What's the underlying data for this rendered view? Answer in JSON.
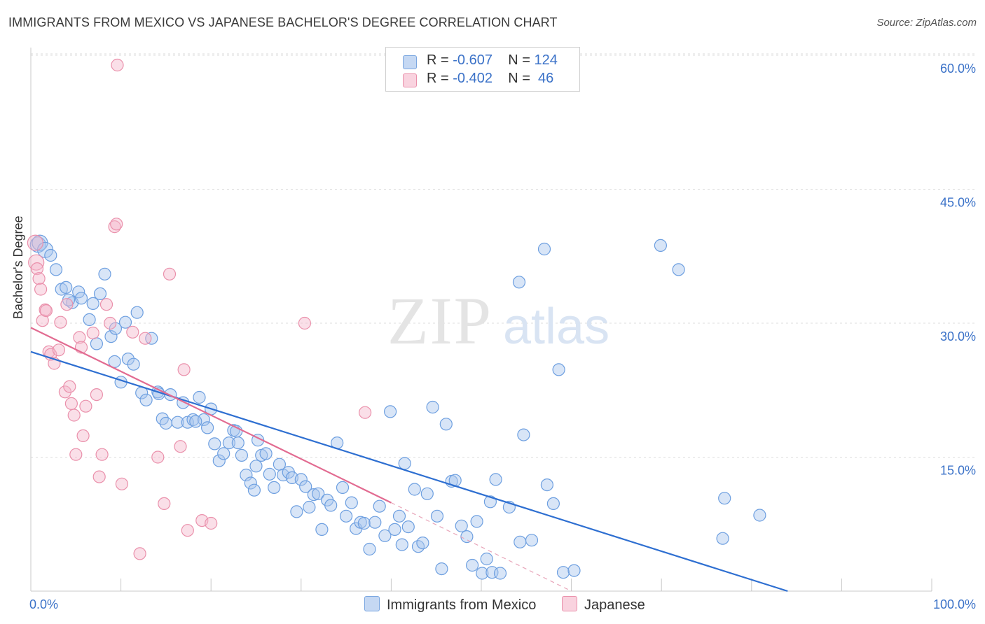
{
  "title": "IMMIGRANTS FROM MEXICO VS JAPANESE BACHELOR'S DEGREE CORRELATION CHART",
  "source": "Source: ZipAtlas.com",
  "watermark": {
    "zip": "ZIP",
    "atlas": "atlas"
  },
  "legend": {
    "rows": [
      {
        "r_label": "R = ",
        "r_value": "-0.607",
        "n_label": "N = ",
        "n_value": "124",
        "color": "#a9c6ee"
      },
      {
        "r_label": "R = ",
        "r_value": "-0.402",
        "n_label": "N = ",
        "n_value": " 46",
        "color": "#f5b8cb"
      }
    ]
  },
  "bottom_legend": [
    {
      "label": "Immigrants from Mexico",
      "color": "#a9c6ee"
    },
    {
      "label": "Japanese",
      "color": "#f5b8cb"
    }
  ],
  "chart_data": {
    "type": "scatter",
    "title": "IMMIGRANTS FROM MEXICO VS JAPANESE BACHELOR'S DEGREE CORRELATION CHART",
    "xlabel": "",
    "ylabel": "Bachelor's Degree",
    "xlim": [
      0,
      100
    ],
    "ylim": [
      0,
      63
    ],
    "x_tick_labels": [
      "0.0%",
      "100.0%"
    ],
    "y_tick_values": [
      15,
      30,
      45,
      60
    ],
    "y_tick_labels": [
      "15.0%",
      "30.0%",
      "45.0%",
      "60.0%"
    ],
    "grid": "horizontal dashed",
    "legend_placement": "top-center",
    "series": [
      {
        "name": "Immigrants from Mexico",
        "color": "#6d9fe0",
        "fill": "#a9c6ee",
        "trendline": {
          "x": [
            0,
            84
          ],
          "y": [
            26.8,
            0
          ],
          "color": "#2e6fd1"
        },
        "points": [
          [
            0.8,
            38.8
          ],
          [
            1.0,
            39.0
          ],
          [
            1.6,
            38.2
          ],
          [
            2.2,
            37.6
          ],
          [
            2.8,
            36.0
          ],
          [
            3.4,
            33.8
          ],
          [
            3.9,
            34.0
          ],
          [
            4.6,
            32.3
          ],
          [
            5.3,
            33.5
          ],
          [
            5.6,
            32.8
          ],
          [
            6.5,
            30.4
          ],
          [
            7.3,
            27.7
          ],
          [
            7.7,
            33.3
          ],
          [
            8.2,
            35.5
          ],
          [
            8.9,
            28.5
          ],
          [
            9.3,
            25.7
          ],
          [
            10.0,
            23.4
          ],
          [
            10.5,
            30.1
          ],
          [
            10.8,
            26.0
          ],
          [
            11.4,
            25.4
          ],
          [
            11.8,
            31.2
          ],
          [
            12.3,
            22.2
          ],
          [
            12.8,
            21.4
          ],
          [
            13.4,
            28.3
          ],
          [
            14.1,
            22.3
          ],
          [
            14.6,
            19.3
          ],
          [
            15.0,
            18.8
          ],
          [
            15.5,
            22.0
          ],
          [
            16.3,
            18.9
          ],
          [
            16.9,
            21.1
          ],
          [
            17.4,
            18.9
          ],
          [
            18.0,
            19.2
          ],
          [
            18.7,
            21.7
          ],
          [
            19.2,
            19.2
          ],
          [
            19.6,
            18.3
          ],
          [
            20.0,
            20.4
          ],
          [
            20.4,
            16.5
          ],
          [
            20.9,
            14.6
          ],
          [
            21.4,
            15.4
          ],
          [
            22.0,
            16.6
          ],
          [
            22.5,
            18.0
          ],
          [
            23.0,
            16.6
          ],
          [
            23.4,
            15.2
          ],
          [
            23.9,
            13.0
          ],
          [
            24.4,
            12.1
          ],
          [
            24.8,
            11.3
          ],
          [
            25.2,
            16.9
          ],
          [
            25.6,
            15.2
          ],
          [
            26.1,
            15.4
          ],
          [
            26.5,
            13.1
          ],
          [
            27.0,
            11.6
          ],
          [
            27.6,
            14.2
          ],
          [
            28.0,
            13.0
          ],
          [
            28.6,
            13.3
          ],
          [
            29.0,
            12.7
          ],
          [
            29.5,
            8.9
          ],
          [
            30.0,
            12.5
          ],
          [
            30.5,
            11.7
          ],
          [
            30.9,
            9.4
          ],
          [
            31.4,
            10.8
          ],
          [
            31.9,
            10.9
          ],
          [
            32.3,
            6.9
          ],
          [
            32.9,
            10.2
          ],
          [
            33.3,
            9.6
          ],
          [
            34.0,
            16.6
          ],
          [
            34.6,
            11.6
          ],
          [
            35.0,
            8.4
          ],
          [
            35.6,
            9.9
          ],
          [
            36.1,
            7.0
          ],
          [
            36.6,
            7.7
          ],
          [
            37.0,
            7.6
          ],
          [
            37.6,
            4.7
          ],
          [
            38.2,
            7.7
          ],
          [
            38.7,
            9.5
          ],
          [
            39.3,
            6.2
          ],
          [
            39.9,
            20.1
          ],
          [
            40.4,
            6.9
          ],
          [
            40.9,
            8.4
          ],
          [
            41.5,
            14.3
          ],
          [
            41.9,
            7.2
          ],
          [
            42.6,
            11.4
          ],
          [
            43.0,
            5.0
          ],
          [
            43.5,
            5.4
          ],
          [
            44.0,
            10.9
          ],
          [
            44.6,
            20.6
          ],
          [
            45.1,
            8.4
          ],
          [
            45.6,
            2.5
          ],
          [
            46.1,
            18.7
          ],
          [
            46.7,
            12.3
          ],
          [
            47.1,
            12.4
          ],
          [
            47.8,
            7.3
          ],
          [
            48.4,
            6.1
          ],
          [
            49.0,
            2.9
          ],
          [
            49.5,
            7.8
          ],
          [
            50.1,
            2.0
          ],
          [
            50.6,
            3.6
          ],
          [
            51.2,
            2.1
          ],
          [
            51.6,
            12.5
          ],
          [
            52.1,
            2.0
          ],
          [
            53.1,
            9.4
          ],
          [
            54.3,
            5.5
          ],
          [
            54.7,
            17.5
          ],
          [
            55.6,
            5.7
          ],
          [
            57.0,
            38.3
          ],
          [
            57.3,
            11.9
          ],
          [
            58.0,
            9.8
          ],
          [
            58.6,
            24.8
          ],
          [
            59.1,
            2.1
          ],
          [
            60.3,
            2.3
          ],
          [
            69.9,
            38.7
          ],
          [
            71.9,
            36.0
          ],
          [
            76.8,
            5.9
          ],
          [
            77.0,
            10.4
          ],
          [
            80.9,
            8.5
          ],
          [
            54.2,
            34.6
          ],
          [
            41.2,
            5.2
          ],
          [
            51.0,
            10.0
          ],
          [
            22.8,
            17.9
          ],
          [
            18.3,
            19.0
          ],
          [
            14.2,
            22.1
          ],
          [
            9.4,
            29.4
          ],
          [
            6.9,
            32.2
          ],
          [
            4.2,
            32.6
          ],
          [
            25.0,
            14.0
          ]
        ]
      },
      {
        "name": "Japanese",
        "color": "#ea90ab",
        "fill": "#f5b8cb",
        "trendline": {
          "x": [
            0,
            40
          ],
          "y": [
            29.5,
            9.9
          ],
          "color": "#e26b91"
        },
        "trendline_ext": {
          "x": [
            40,
            60
          ],
          "y": [
            9.9,
            0
          ],
          "color": "#e8a5b9"
        },
        "points": [
          [
            0.5,
            39.0
          ],
          [
            0.6,
            36.8
          ],
          [
            0.7,
            36.1
          ],
          [
            0.9,
            35.0
          ],
          [
            1.1,
            33.8
          ],
          [
            1.3,
            30.3
          ],
          [
            1.6,
            31.5
          ],
          [
            1.7,
            31.4
          ],
          [
            2.0,
            26.8
          ],
          [
            2.2,
            26.5
          ],
          [
            2.6,
            25.5
          ],
          [
            3.1,
            27.0
          ],
          [
            3.3,
            30.1
          ],
          [
            3.8,
            22.3
          ],
          [
            4.0,
            32.1
          ],
          [
            4.3,
            22.9
          ],
          [
            4.5,
            21.0
          ],
          [
            4.8,
            19.7
          ],
          [
            5.0,
            15.3
          ],
          [
            5.4,
            28.4
          ],
          [
            5.6,
            27.3
          ],
          [
            5.8,
            17.4
          ],
          [
            6.1,
            20.7
          ],
          [
            6.9,
            28.9
          ],
          [
            7.3,
            22.0
          ],
          [
            7.6,
            12.8
          ],
          [
            7.9,
            15.3
          ],
          [
            8.4,
            32.1
          ],
          [
            8.8,
            30.0
          ],
          [
            9.3,
            40.8
          ],
          [
            9.5,
            41.1
          ],
          [
            9.6,
            58.9
          ],
          [
            10.1,
            12.0
          ],
          [
            11.3,
            29.0
          ],
          [
            12.1,
            4.2
          ],
          [
            12.7,
            28.3
          ],
          [
            14.1,
            15.0
          ],
          [
            14.8,
            9.8
          ],
          [
            15.4,
            35.5
          ],
          [
            16.6,
            16.2
          ],
          [
            17.0,
            24.8
          ],
          [
            17.4,
            6.8
          ],
          [
            19.0,
            7.9
          ],
          [
            20.0,
            7.6
          ],
          [
            30.4,
            30.0
          ],
          [
            37.1,
            20.0
          ]
        ]
      }
    ]
  }
}
